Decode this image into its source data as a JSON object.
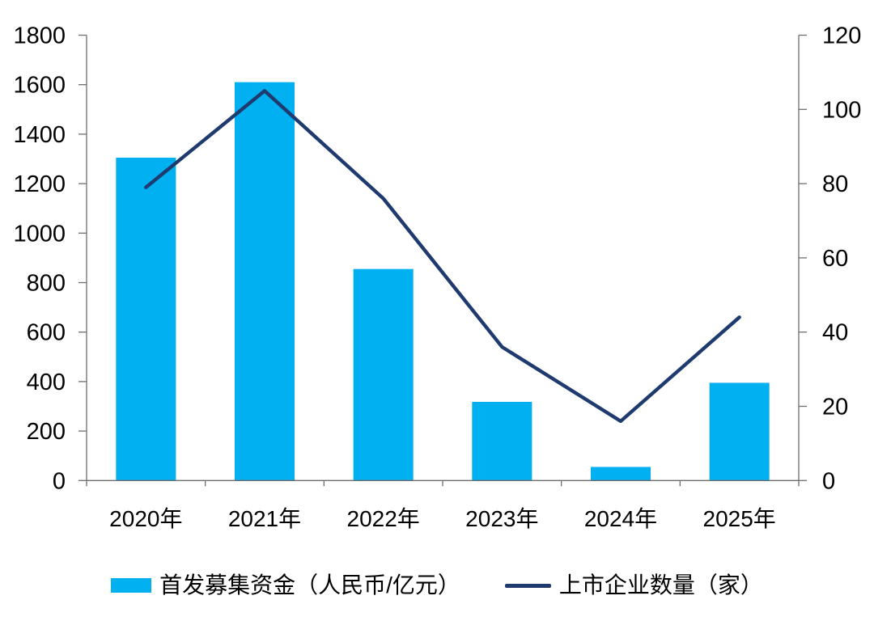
{
  "chart_data": {
    "type": "combo",
    "title": "",
    "categories": [
      "2020年",
      "2021年",
      "2022年",
      "2023年",
      "2024年",
      "2025年"
    ],
    "series": [
      {
        "name": "首发募集资金（人民币/亿元）",
        "type": "bar",
        "axis": "left",
        "color": "#00B0F0",
        "values": [
          1305,
          1610,
          855,
          318,
          55,
          395
        ]
      },
      {
        "name": "上市企业数量（家）",
        "type": "line",
        "axis": "right",
        "color": "#1F3A6E",
        "values": [
          79,
          105,
          76,
          36,
          16,
          44
        ]
      }
    ],
    "left_axis": {
      "min": 0,
      "max": 1800,
      "step": 200,
      "tick_labels": [
        "0",
        "200",
        "400",
        "600",
        "800",
        "1000",
        "1200",
        "1400",
        "1600",
        "1800"
      ]
    },
    "right_axis": {
      "min": 0,
      "max": 120,
      "step": 20,
      "tick_labels": [
        "0",
        "20",
        "40",
        "60",
        "80",
        "100",
        "120"
      ]
    },
    "axis_color": "#6e6e6e",
    "label_color": "#000000",
    "grid": false,
    "legend_position": "bottom"
  }
}
